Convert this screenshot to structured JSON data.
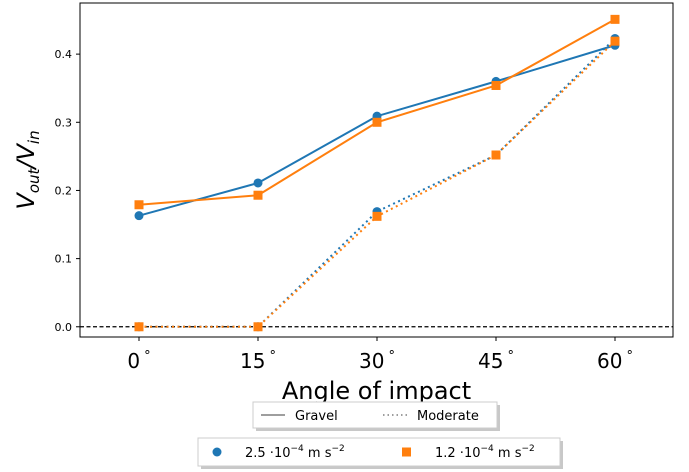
{
  "chart_data": {
    "type": "line",
    "title": "",
    "xlabel": "Angle of impact",
    "ylabel_main": "V",
    "ylabel_num_sub": "out",
    "ylabel_sep": "/V",
    "ylabel_den_sub": "in",
    "categories": [
      "0",
      "15",
      "30",
      "45",
      "60"
    ],
    "degree_symbol": "°",
    "yticks": [
      "0.0",
      "0.1",
      "0.2",
      "0.3",
      "0.4"
    ],
    "ylim": [
      -0.015,
      0.475
    ],
    "reference_line": {
      "y": 0.0,
      "style": "dashed",
      "color": "#000000"
    },
    "series": [
      {
        "group": "gravel",
        "concentration": "c1",
        "values": [
          0.163,
          0.211,
          0.309,
          0.36,
          0.413
        ]
      },
      {
        "group": "gravel",
        "concentration": "c2",
        "values": [
          0.179,
          0.193,
          0.3,
          0.354,
          0.451
        ]
      },
      {
        "group": "moderate",
        "concentration": "c1",
        "values": [
          0.0,
          0.0,
          0.169,
          0.252,
          0.423
        ]
      },
      {
        "group": "moderate",
        "concentration": "c2",
        "values": [
          0.0,
          0.0,
          0.162,
          0.252,
          0.419
        ]
      }
    ],
    "line_styles": {
      "gravel": "solid",
      "moderate": "dotted"
    },
    "concentration_styles": {
      "c1": {
        "color": "#1f77b4",
        "marker": "circle"
      },
      "c2": {
        "color": "#ff7f0e",
        "marker": "square"
      }
    },
    "legend_style": {
      "placement": "bottom-center",
      "entries": [
        {
          "label": "Gravel",
          "style": "solid",
          "color": "#7f7f7f"
        },
        {
          "label": "Moderate",
          "style": "dotted",
          "color": "#7f7f7f"
        }
      ]
    },
    "legend_concentration": {
      "placement": "bottom-center",
      "entries": [
        {
          "label_pre": "2.5 ·10",
          "exp": "−4",
          "label_unit": " m s",
          "unit_exp": "−2",
          "marker": "circle",
          "color": "#1f77b4"
        },
        {
          "label_pre": "1.2 ·10",
          "exp": "−4",
          "label_unit": " m s",
          "unit_exp": "−2",
          "marker": "square",
          "color": "#ff7f0e"
        }
      ]
    }
  }
}
